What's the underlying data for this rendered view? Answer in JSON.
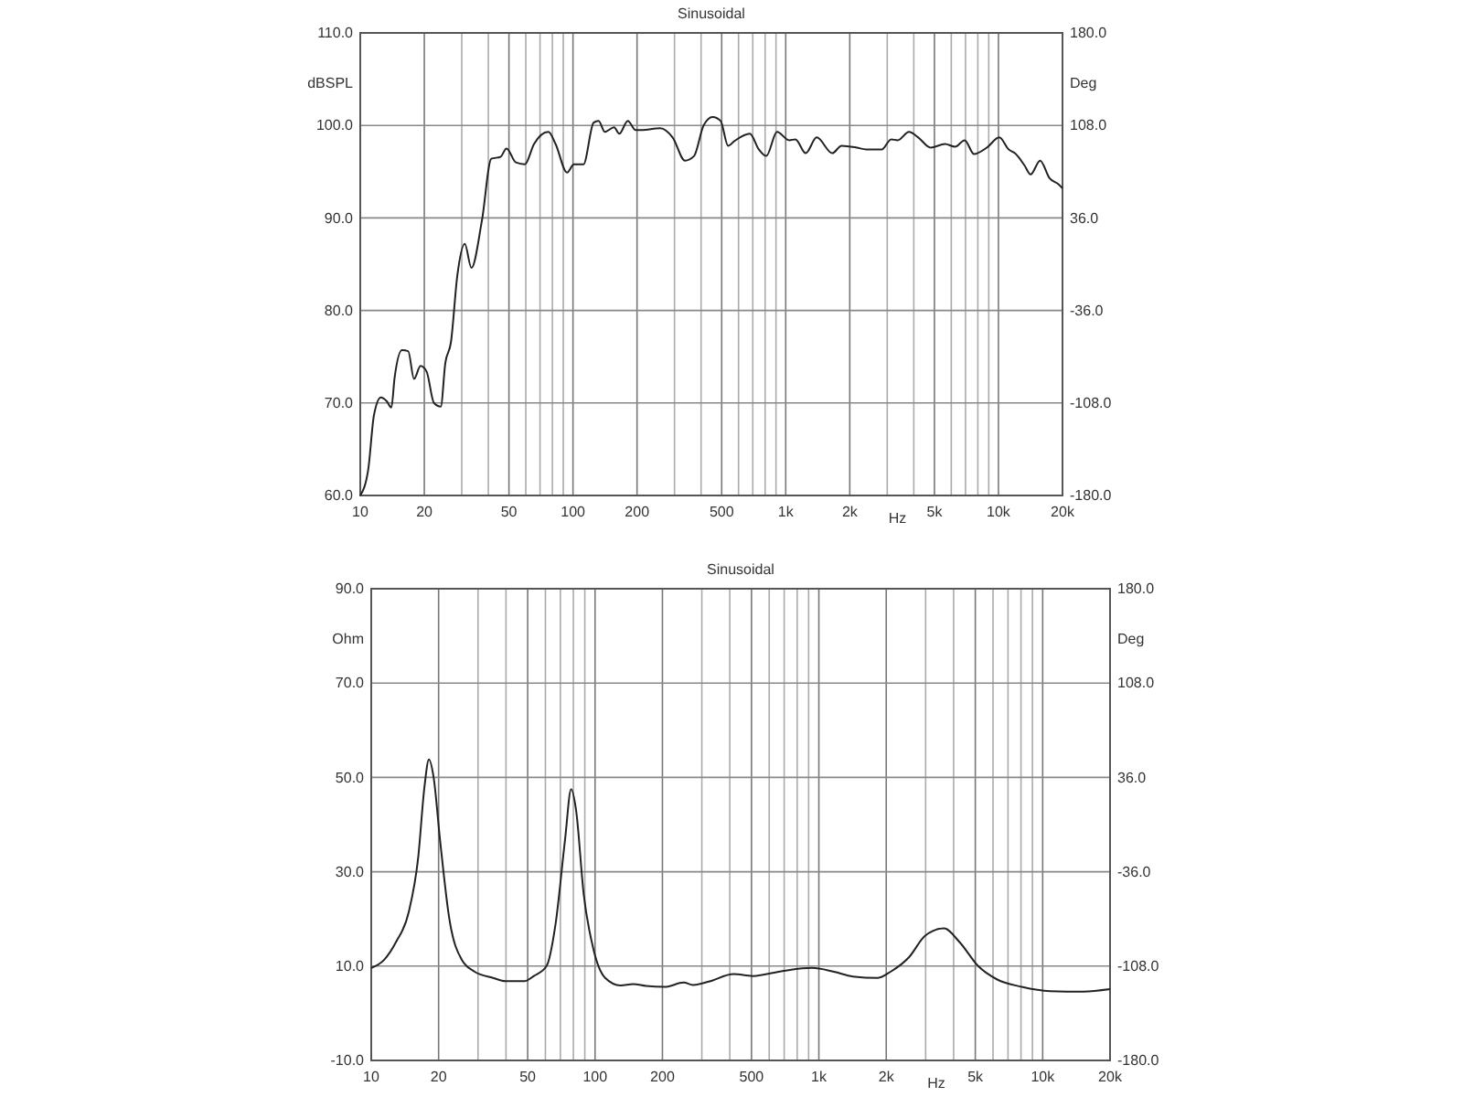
{
  "chart_data": [
    {
      "type": "line",
      "title": "Sinusoidal",
      "ylabel": "dBSPL",
      "y2label": "Deg",
      "xlabel": "Hz",
      "log": "x",
      "grid": true,
      "xlim": [
        10,
        20000
      ],
      "ylim": [
        60,
        110
      ],
      "y2lim": [
        -180,
        180
      ],
      "xticks": [
        10,
        20,
        {
          "value": 30,
          "label": null
        },
        {
          "value": 40,
          "label": null
        },
        50,
        {
          "value": 60,
          "label": null
        },
        {
          "value": 70,
          "label": null
        },
        {
          "value": 80,
          "label": null
        },
        {
          "value": 90,
          "label": null
        },
        100,
        200,
        {
          "value": 300,
          "label": null
        },
        {
          "value": 400,
          "label": null
        },
        500,
        {
          "value": 600,
          "label": null
        },
        {
          "value": 700,
          "label": null
        },
        {
          "value": 800,
          "label": null
        },
        {
          "value": 900,
          "label": null
        },
        {
          "value": 1000,
          "label": "1k"
        },
        {
          "value": 2000,
          "label": "2k"
        },
        {
          "value": 3000,
          "label": null
        },
        {
          "value": 4000,
          "label": null
        },
        {
          "value": 5000,
          "label": "5k"
        },
        {
          "value": 6000,
          "label": null
        },
        {
          "value": 7000,
          "label": null
        },
        {
          "value": 8000,
          "label": null
        },
        {
          "value": 9000,
          "label": null
        },
        {
          "value": 10000,
          "label": "10k"
        },
        {
          "value": 20000,
          "label": "20k"
        }
      ],
      "yticks": [
        {
          "value": 60,
          "label": "60.0"
        },
        {
          "value": 70,
          "label": "70.0"
        },
        {
          "value": 80,
          "label": "80.0"
        },
        {
          "value": 90,
          "label": "90.0"
        },
        {
          "value": 100,
          "label": "100.0"
        },
        {
          "value": 110,
          "label": "110.0"
        }
      ],
      "y2ticks": [
        {
          "value": -180,
          "label": "-180.0"
        },
        {
          "value": -108,
          "label": "-108.0"
        },
        {
          "value": -36,
          "label": "-36.0"
        },
        {
          "value": 36,
          "label": "36.0"
        },
        {
          "value": 108,
          "label": "108.0"
        },
        {
          "value": 180,
          "label": "180.0"
        }
      ],
      "series": [
        {
          "color": "#222222",
          "x": [
            10,
            10.9,
            11.6,
            12.5,
            13.3,
            14,
            14.5,
            15.7,
            16.8,
            17.9,
            19.2,
            20.5,
            22.2,
            23.9,
            25.1,
            26.7,
            28.6,
            31,
            33.3,
            37.3,
            41.3,
            45.6,
            48.7,
            53.9,
            59.4,
            65.6,
            76.6,
            82.8,
            93.8,
            101,
            112,
            125,
            132,
            141,
            156,
            165,
            181,
            197,
            210,
            257,
            294,
            336,
            371,
            411,
            453,
            494,
            536,
            573,
            678,
            748,
            810,
            910,
            1039,
            1111,
            1241,
            1398,
            1656,
            1830,
            2157,
            2390,
            2825,
            3131,
            3357,
            3799,
            4196,
            4801,
            5607,
            6250,
            6935,
            7681,
            8816,
            10090,
            11170,
            11950,
            13240,
            14160,
            15700,
            17380,
            19240,
            20000
          ],
          "values": [
            60,
            62.8,
            68.7,
            70.6,
            70.2,
            69.5,
            72.7,
            75.7,
            75.6,
            72.6,
            74,
            73.4,
            70,
            69.6,
            74.3,
            76.6,
            83.8,
            87.2,
            84.6,
            89.7,
            96.4,
            96.6,
            97.5,
            96,
            95.8,
            98,
            99.3,
            98,
            94.9,
            95.8,
            95.8,
            100.3,
            100.5,
            99.3,
            99.8,
            99.1,
            100.5,
            99.5,
            99.5,
            99.7,
            98.7,
            96.2,
            96.7,
            100,
            100.9,
            100.5,
            97.8,
            98.3,
            99.1,
            97.4,
            96.7,
            99.3,
            98.4,
            98.5,
            97,
            98.7,
            97,
            97.8,
            97.6,
            97.4,
            97.4,
            98.5,
            98.4,
            99.3,
            98.7,
            97.6,
            98,
            97.7,
            98.4,
            96.9,
            97.6,
            98.7,
            97.4,
            97,
            95.7,
            94.7,
            96.2,
            94.3,
            93.6,
            93.2
          ]
        }
      ]
    },
    {
      "type": "line",
      "title": "Sinusoidal",
      "ylabel": "Ohm",
      "y2label": "Deg",
      "xlabel": "Hz",
      "log": "x",
      "grid": true,
      "xlim": [
        10,
        20000
      ],
      "ylim": [
        -10,
        90
      ],
      "y2lim": [
        -180,
        180
      ],
      "xticks": [
        10,
        20,
        {
          "value": 30,
          "label": null
        },
        {
          "value": 40,
          "label": null
        },
        50,
        {
          "value": 60,
          "label": null
        },
        {
          "value": 70,
          "label": null
        },
        {
          "value": 80,
          "label": null
        },
        {
          "value": 90,
          "label": null
        },
        100,
        200,
        {
          "value": 300,
          "label": null
        },
        {
          "value": 400,
          "label": null
        },
        500,
        {
          "value": 600,
          "label": null
        },
        {
          "value": 700,
          "label": null
        },
        {
          "value": 800,
          "label": null
        },
        {
          "value": 900,
          "label": null
        },
        {
          "value": 1000,
          "label": "1k"
        },
        {
          "value": 2000,
          "label": "2k"
        },
        {
          "value": 3000,
          "label": null
        },
        {
          "value": 4000,
          "label": null
        },
        {
          "value": 5000,
          "label": "5k"
        },
        {
          "value": 6000,
          "label": null
        },
        {
          "value": 7000,
          "label": null
        },
        {
          "value": 8000,
          "label": null
        },
        {
          "value": 9000,
          "label": null
        },
        {
          "value": 10000,
          "label": "10k"
        },
        {
          "value": 20000,
          "label": "20k"
        }
      ],
      "yticks": [
        {
          "value": -10,
          "label": "-10.0"
        },
        {
          "value": 10,
          "label": "10.0"
        },
        {
          "value": 30,
          "label": "30.0"
        },
        {
          "value": 50,
          "label": "50.0"
        },
        {
          "value": 70,
          "label": "70.0"
        },
        {
          "value": 90,
          "label": "90.0"
        }
      ],
      "y2ticks": [
        {
          "value": -180,
          "label": "-180.0"
        },
        {
          "value": -108,
          "label": "-108.0"
        },
        {
          "value": -36,
          "label": "-36.0"
        },
        {
          "value": 36,
          "label": "36.0"
        },
        {
          "value": 108,
          "label": "108.0"
        },
        {
          "value": 180,
          "label": "180.0"
        }
      ],
      "series": [
        {
          "color": "#222222",
          "x": [
            10,
            11.4,
            12.9,
            14.7,
            16.2,
            17.3,
            18.1,
            19,
            20.3,
            22.3,
            25.4,
            29,
            35,
            39.8,
            48.3,
            53.3,
            60.7,
            66.6,
            73.4,
            78.2,
            82.3,
            89,
            98.1,
            111,
            130,
            148,
            169,
            205,
            249,
            274,
            322,
            416,
            506,
            696,
            931,
            1168,
            1418,
            1835,
            2090,
            2530,
            2980,
            3620,
            4250,
            5150,
            6240,
            8070,
            10800,
            15200,
            20000
          ],
          "values": [
            9.6,
            11.3,
            15.1,
            21.4,
            32.9,
            48.1,
            53.8,
            50,
            36.7,
            20.2,
            11.3,
            8.8,
            7.5,
            6.8,
            6.8,
            7.9,
            10,
            18.9,
            36.7,
            47.5,
            43,
            25.2,
            13.8,
            7.5,
            5.9,
            6.2,
            5.8,
            5.6,
            6.5,
            6,
            6.7,
            8.3,
            7.9,
            9,
            9.6,
            8.8,
            7.8,
            7.5,
            8.8,
            11.9,
            16.4,
            18,
            15.1,
            10,
            7.2,
            5.6,
            4.7,
            4.6,
            5.1
          ]
        }
      ]
    }
  ]
}
